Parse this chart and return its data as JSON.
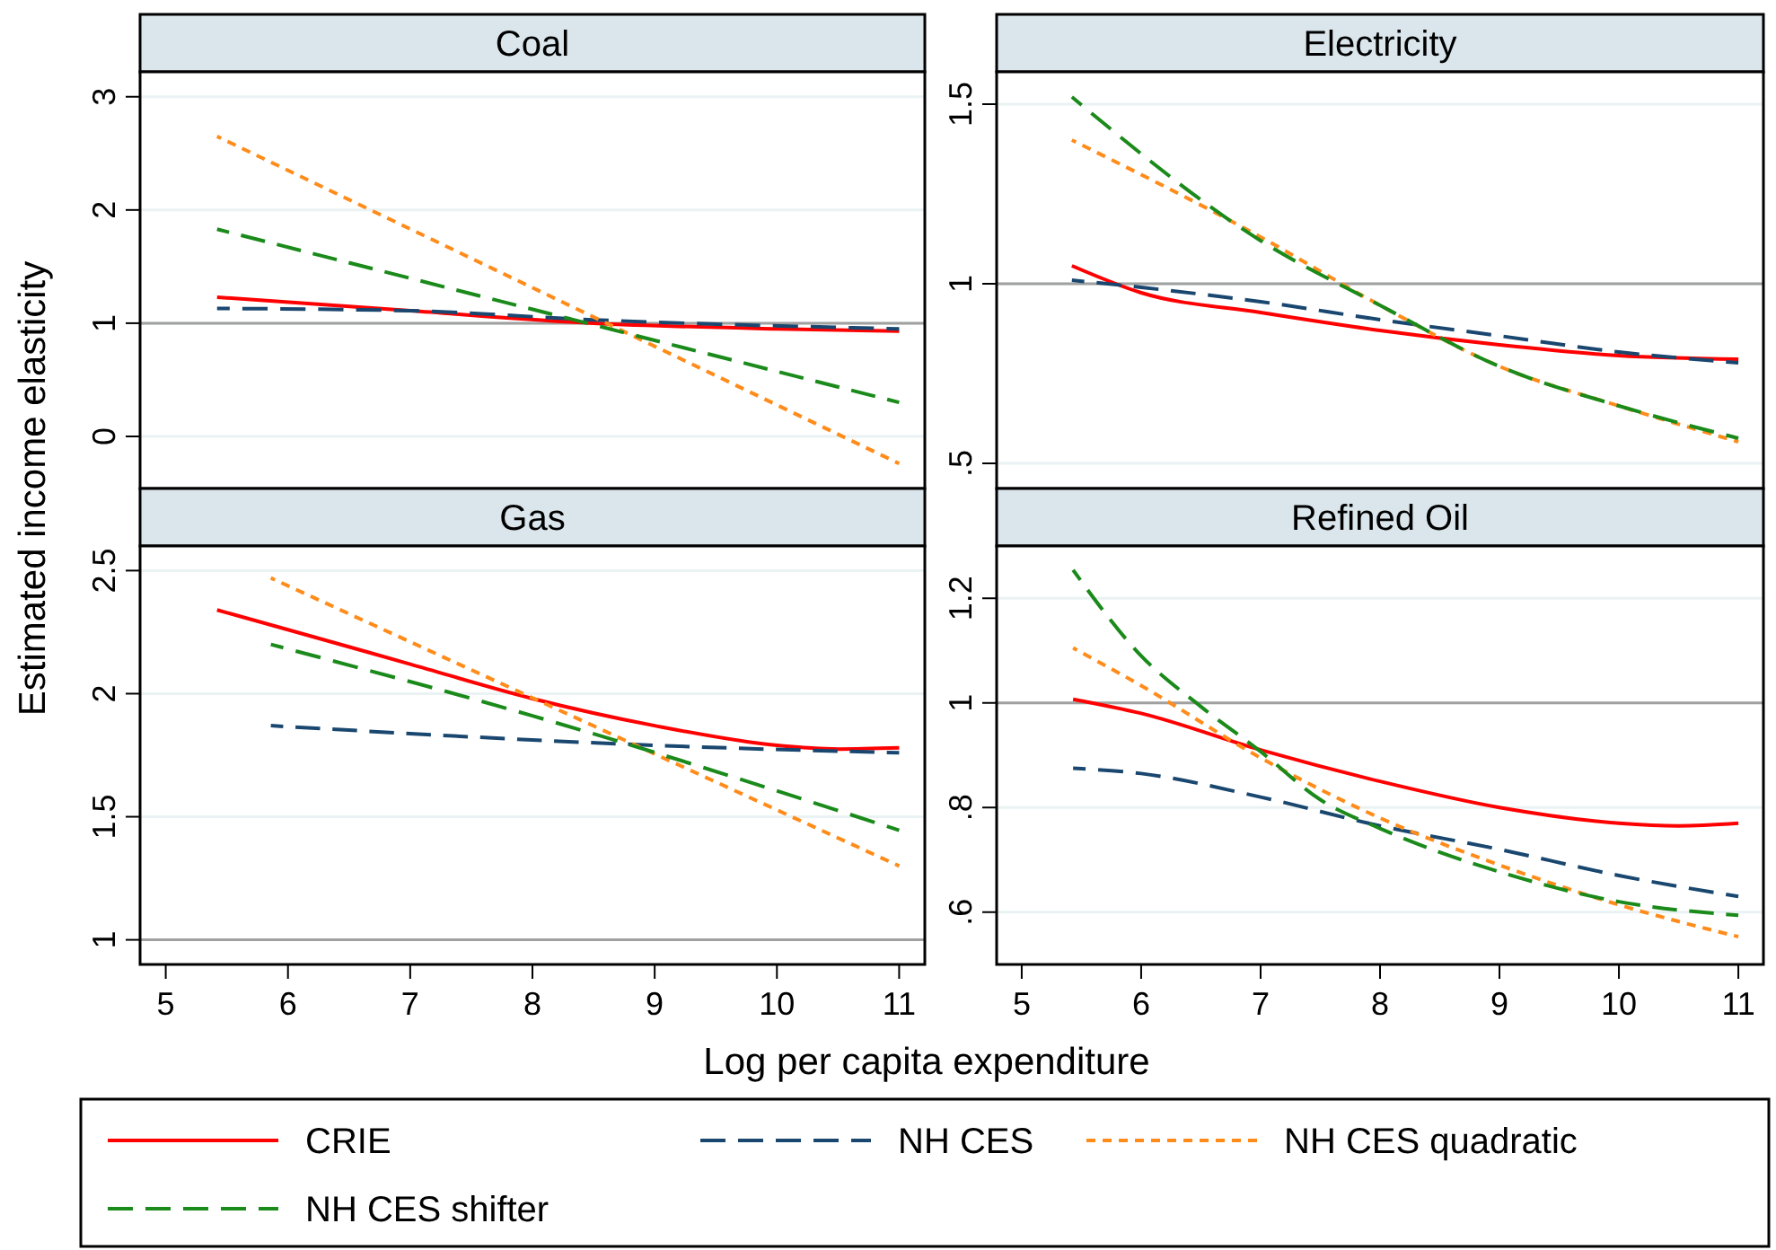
{
  "chart_data": [
    {
      "type": "line",
      "title": "Coal",
      "ylabel": "Estimated income elasticity",
      "xlim": [
        4.79,
        11.21
      ],
      "ylim": [
        -0.46,
        3.22
      ],
      "yticks": [
        0,
        1,
        2,
        3
      ],
      "tick_labels": "y",
      "grid": "y",
      "legend": "bottom",
      "ref_lines": [
        {
          "axis": "y",
          "value": 1,
          "color": "#a0a0a0"
        }
      ],
      "series": [
        {
          "name": "CRIE",
          "color": "#ff0000",
          "line_style": "solid",
          "x": [
            5.42,
            7,
            8.5,
            10,
            11
          ],
          "values": [
            1.23,
            1.11,
            1.0,
            0.95,
            0.93
          ]
        },
        {
          "name": "NH CES",
          "color": "#1a476f",
          "line_style": "dashed",
          "x": [
            5.42,
            7,
            8.5,
            11
          ],
          "values": [
            1.13,
            1.11,
            1.03,
            0.95
          ]
        },
        {
          "name": "NH CES quadratic",
          "color": "#ff8c1a",
          "line_style": "dotted",
          "x": [
            5.42,
            11
          ],
          "values": [
            2.65,
            -0.24
          ]
        },
        {
          "name": "NH CES shifter",
          "color": "#1a8a1a",
          "line_style": "dashed",
          "x": [
            5.42,
            11
          ],
          "values": [
            1.83,
            0.3
          ]
        }
      ]
    },
    {
      "type": "line",
      "title": "Electricity",
      "xlim": [
        4.79,
        11.21
      ],
      "ylim": [
        0.43,
        1.59
      ],
      "yticks": [
        {
          "value": 0.5,
          "label": ".5"
        },
        1,
        1.5
      ],
      "tick_labels": "y",
      "grid": "y",
      "ref_lines": [
        {
          "axis": "y",
          "value": 1,
          "color": "#a0a0a0"
        }
      ],
      "series": [
        {
          "color": "#ff0000",
          "line_style": "solid",
          "x": [
            5.42,
            6,
            7,
            8,
            9,
            10,
            11
          ],
          "values": [
            1.05,
            0.975,
            0.92,
            0.87,
            0.83,
            0.8,
            0.79
          ]
        },
        {
          "color": "#1a476f",
          "line_style": "dashed",
          "x": [
            5.42,
            6,
            7,
            8,
            9,
            10,
            11
          ],
          "values": [
            1.01,
            0.99,
            0.95,
            0.9,
            0.855,
            0.81,
            0.78
          ]
        },
        {
          "color": "#ff8c1a",
          "line_style": "dotted",
          "x": [
            5.42,
            7,
            8,
            9,
            10,
            11
          ],
          "values": [
            1.4,
            1.13,
            0.94,
            0.77,
            0.66,
            0.56
          ]
        },
        {
          "color": "#1a8a1a",
          "line_style": "dashed",
          "x": [
            5.42,
            7,
            8,
            9,
            10,
            11
          ],
          "values": [
            1.52,
            1.12,
            0.94,
            0.77,
            0.66,
            0.57
          ]
        }
      ]
    },
    {
      "type": "line",
      "title": "Gas",
      "xlabel": "Log per capita expenditure",
      "xlim": [
        4.79,
        11.21
      ],
      "ylim": [
        0.9,
        2.6
      ],
      "xticks": [
        5,
        6,
        7,
        8,
        9,
        10,
        11
      ],
      "yticks": [
        1,
        1.5,
        2,
        2.5
      ],
      "grid": "y",
      "ref_lines": [
        {
          "axis": "y",
          "value": 1,
          "color": "#a0a0a0"
        }
      ],
      "series": [
        {
          "color": "#ff0000",
          "line_style": "solid",
          "x": [
            5.42,
            6,
            7,
            8,
            9,
            10,
            10.5,
            11
          ],
          "values": [
            2.34,
            2.26,
            2.12,
            1.98,
            1.87,
            1.79,
            1.775,
            1.78
          ]
        },
        {
          "color": "#1a476f",
          "line_style": "dashed",
          "x": [
            5.86,
            9,
            11
          ],
          "values": [
            1.87,
            1.79,
            1.76
          ]
        },
        {
          "color": "#ff8c1a",
          "line_style": "dotted",
          "x": [
            5.86,
            11
          ],
          "values": [
            2.47,
            1.3
          ]
        },
        {
          "color": "#1a8a1a",
          "line_style": "dashed",
          "x": [
            5.86,
            8,
            11
          ],
          "values": [
            2.2,
            1.91,
            1.445
          ]
        }
      ]
    },
    {
      "type": "line",
      "title": "Refined Oil",
      "xlim": [
        4.79,
        11.21
      ],
      "ylim": [
        0.5,
        1.3
      ],
      "xticks": [
        5,
        6,
        7,
        8,
        9,
        10,
        11
      ],
      "yticks": [
        {
          "value": 0.6,
          "label": ".6"
        },
        {
          "value": 0.8,
          "label": ".8"
        },
        1,
        1.2
      ],
      "grid": "y",
      "ref_lines": [
        {
          "axis": "y",
          "value": 1,
          "color": "#a0a0a0"
        }
      ],
      "series": [
        {
          "color": "#ff0000",
          "line_style": "solid",
          "x": [
            5.43,
            6,
            7,
            8,
            9,
            10,
            10.5,
            11
          ],
          "values": [
            1.007,
            0.98,
            0.91,
            0.85,
            0.8,
            0.77,
            0.765,
            0.77
          ]
        },
        {
          "color": "#1a476f",
          "line_style": "dashed",
          "x": [
            5.43,
            6,
            7,
            8,
            9,
            10,
            11
          ],
          "values": [
            0.875,
            0.865,
            0.82,
            0.765,
            0.72,
            0.67,
            0.63
          ]
        },
        {
          "color": "#ff8c1a",
          "line_style": "dotted",
          "x": [
            5.43,
            6,
            7,
            8,
            9,
            10,
            11
          ],
          "values": [
            1.105,
            1.033,
            0.895,
            0.78,
            0.69,
            0.614,
            0.553
          ]
        },
        {
          "color": "#1a8a1a",
          "line_style": "dashed",
          "x": [
            5.43,
            6,
            6.5,
            7,
            7.5,
            8,
            9,
            10,
            11
          ],
          "values": [
            1.254,
            1.09,
            0.993,
            0.907,
            0.815,
            0.76,
            0.677,
            0.62,
            0.594
          ]
        }
      ]
    }
  ]
}
